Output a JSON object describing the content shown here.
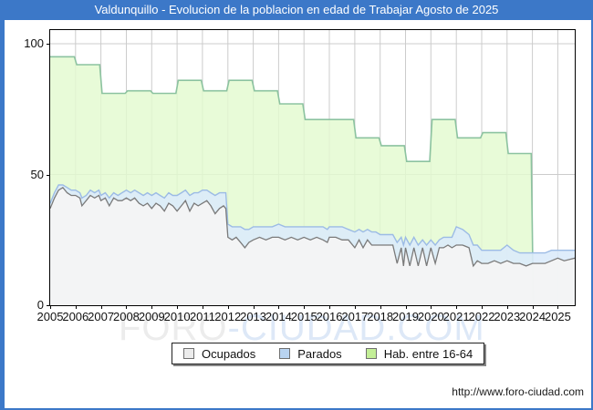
{
  "title": "Valdunquillo - Evolucion de la poblacion en edad de Trabajar Agosto de 2025",
  "watermark": {
    "part1": "FORO",
    "part2": "-CIUDAD.COM"
  },
  "footer_url": "http://www.foro-ciudad.com",
  "colors": {
    "frame_blue": "#3c78c8",
    "grid": "#cccccc",
    "ocupados_fill": "#f4f4f4",
    "ocupados_line": "#7a7a7a",
    "parados_fill": "#dcebfb",
    "parados_line": "#9cbbe5",
    "hab_fill": "#e3fad0",
    "hab_line": "#8cc3a0",
    "legend_swatch_ocupados": "#ececec",
    "legend_swatch_parados": "#b9d4f1",
    "legend_swatch_hab": "#c3ee97"
  },
  "legend": [
    {
      "label": "Ocupados",
      "swatch": "#ececec",
      "icon": "ocupados-swatch-icon"
    },
    {
      "label": "Parados",
      "swatch": "#b9d4f1",
      "icon": "parados-swatch-icon"
    },
    {
      "label": "Hab. entre 16-64",
      "swatch": "#c3ee97",
      "icon": "hab-16-64-swatch-icon"
    }
  ],
  "chart_data": {
    "type": "area",
    "title": "Valdunquillo - Evolucion de la poblacion en edad de Trabajar Agosto de 2025",
    "xlabel": "",
    "ylabel": "",
    "grid": true,
    "legend_position": "bottom-center",
    "x_range": [
      2005,
      2025.667
    ],
    "ylim": [
      0,
      105
    ],
    "y_ticks": [
      0,
      50,
      100
    ],
    "x_ticks": [
      "2005",
      "2006",
      "2007",
      "2008",
      "2009",
      "2010",
      "2011",
      "2012",
      "2013",
      "2014",
      "2015",
      "2016",
      "2017",
      "2018",
      "2019",
      "2020",
      "2021",
      "2022",
      "2023",
      "2024",
      "2025"
    ],
    "hab_16_64": {
      "name": "Hab. entre 16-64",
      "mode": "annual-steps",
      "years": [
        2005,
        2006,
        2007,
        2008,
        2009,
        2010,
        2011,
        2012,
        2013,
        2014,
        2015,
        2016,
        2017,
        2018,
        2019,
        2020,
        2021,
        2022,
        2023
      ],
      "values": [
        95,
        92,
        81,
        82,
        81,
        86,
        82,
        86,
        82,
        77,
        71,
        71,
        64,
        61,
        55,
        71,
        64,
        66,
        58
      ],
      "ends_at": 2024.0
    },
    "monthly": {
      "x": [
        2005.0,
        2005.17,
        2005.33,
        2005.5,
        2005.67,
        2005.83,
        2006.0,
        2006.17,
        2006.25,
        2006.42,
        2006.58,
        2006.75,
        2006.92,
        2007.0,
        2007.17,
        2007.33,
        2007.5,
        2007.67,
        2007.83,
        2008.0,
        2008.17,
        2008.33,
        2008.5,
        2008.67,
        2008.83,
        2009.0,
        2009.17,
        2009.33,
        2009.5,
        2009.67,
        2009.83,
        2010.0,
        2010.17,
        2010.33,
        2010.5,
        2010.67,
        2010.83,
        2011.0,
        2011.17,
        2011.33,
        2011.5,
        2011.67,
        2011.83,
        2011.92,
        2012.0,
        2012.17,
        2012.33,
        2012.5,
        2012.67,
        2012.83,
        2013.0,
        2013.25,
        2013.5,
        2013.75,
        2014.0,
        2014.25,
        2014.5,
        2014.75,
        2015.0,
        2015.25,
        2015.5,
        2015.75,
        2015.92,
        2016.0,
        2016.25,
        2016.5,
        2016.75,
        2017.0,
        2017.17,
        2017.33,
        2017.5,
        2017.67,
        2017.83,
        2018.0,
        2018.25,
        2018.5,
        2018.67,
        2018.83,
        2018.92,
        2019.0,
        2019.17,
        2019.33,
        2019.5,
        2019.67,
        2019.83,
        2020.0,
        2020.17,
        2020.33,
        2020.5,
        2020.67,
        2020.83,
        2021.0,
        2021.25,
        2021.5,
        2021.67,
        2021.83,
        2022.0,
        2022.25,
        2022.5,
        2022.75,
        2023.0,
        2023.25,
        2023.5,
        2023.75,
        2024.0,
        2024.25,
        2024.5,
        2024.75,
        2025.0,
        2025.25,
        2025.67
      ],
      "ocupados": [
        37,
        41,
        44,
        45,
        43,
        42,
        42,
        41,
        38,
        40,
        42,
        41,
        42,
        40,
        41,
        38,
        41,
        40,
        40,
        41,
        40,
        41,
        39,
        38,
        39,
        37,
        39,
        38,
        36,
        39,
        38,
        36,
        38,
        40,
        36,
        39,
        38,
        39,
        40,
        38,
        35,
        37,
        38,
        37,
        26,
        25,
        26,
        24,
        22,
        24,
        25,
        26,
        25,
        26,
        26,
        25,
        26,
        25,
        26,
        25,
        26,
        25,
        24,
        26,
        26,
        25,
        25,
        22,
        25,
        22,
        25,
        23,
        23,
        23,
        23,
        23,
        16,
        22,
        15,
        22,
        15,
        22,
        15,
        22,
        15,
        22,
        16,
        22,
        22,
        23,
        22,
        23,
        23,
        22,
        15,
        17,
        16,
        16,
        17,
        16,
        17,
        16,
        16,
        15,
        16,
        16,
        16,
        17,
        18,
        17,
        18
      ],
      "parados": [
        2,
        2,
        2,
        1,
        2,
        2,
        2,
        2,
        3,
        2,
        2,
        2,
        2,
        2,
        2,
        3,
        2,
        2,
        3,
        3,
        3,
        3,
        4,
        4,
        4,
        5,
        4,
        4,
        5,
        4,
        4,
        6,
        5,
        4,
        6,
        4,
        5,
        5,
        4,
        5,
        7,
        6,
        5,
        6,
        5,
        5,
        4,
        6,
        7,
        5,
        5,
        4,
        5,
        4,
        5,
        5,
        4,
        5,
        4,
        5,
        4,
        5,
        5,
        4,
        4,
        5,
        4,
        6,
        4,
        6,
        4,
        5,
        5,
        4,
        4,
        4,
        8,
        4,
        8,
        4,
        8,
        4,
        8,
        3,
        8,
        3,
        7,
        3,
        4,
        3,
        4,
        7,
        6,
        5,
        8,
        6,
        5,
        5,
        4,
        5,
        6,
        5,
        4,
        5,
        4,
        4,
        4,
        4,
        3,
        4,
        3
      ]
    }
  }
}
